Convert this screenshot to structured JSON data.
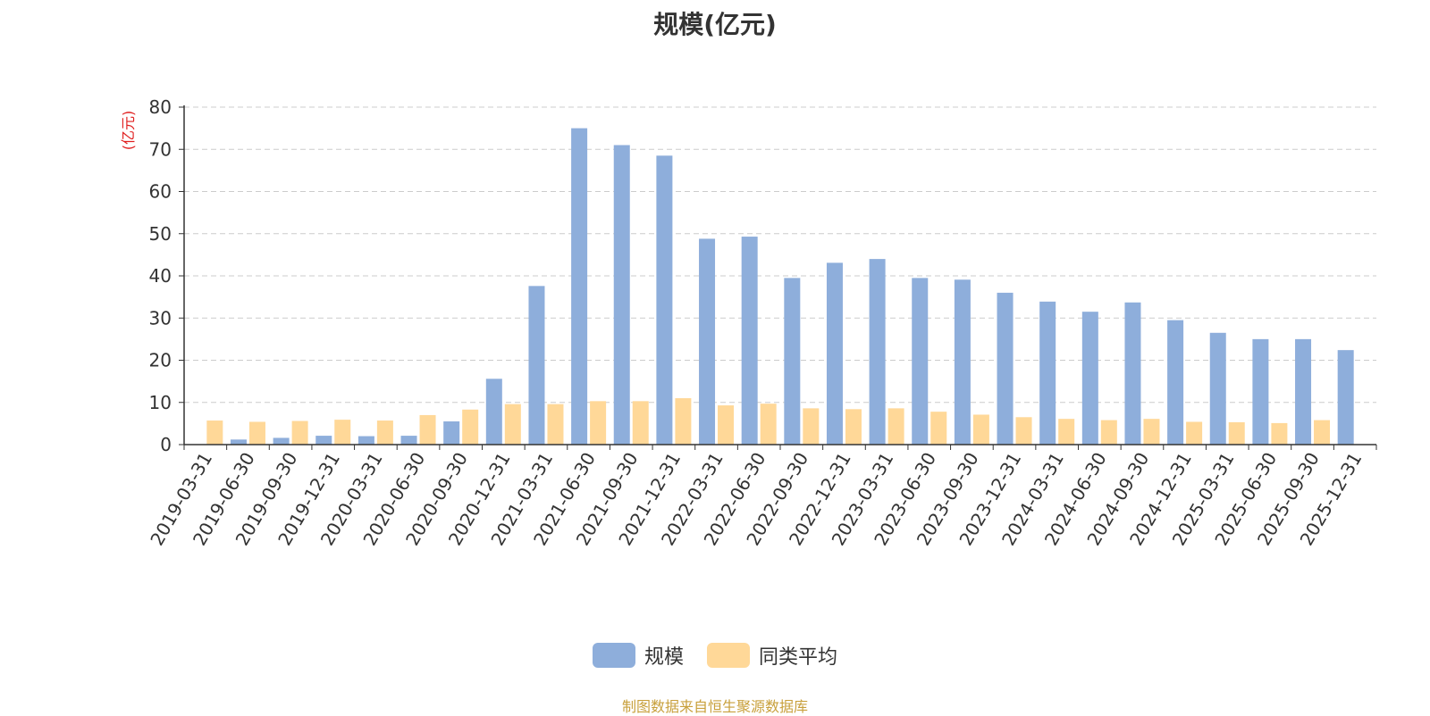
{
  "chart_data": {
    "type": "bar",
    "title": "规模(亿元)",
    "ylabel": "(亿元)",
    "xlabel": "",
    "ylim": [
      0,
      80
    ],
    "yticks": [
      0,
      10,
      20,
      30,
      40,
      50,
      60,
      70,
      80
    ],
    "grid": true,
    "legend_position": "bottom",
    "categories": [
      "2019-03-31",
      "2019-06-30",
      "2019-09-30",
      "2019-12-31",
      "2020-03-31",
      "2020-06-30",
      "2020-09-30",
      "2020-12-31",
      "2021-03-31",
      "2021-06-30",
      "2021-09-30",
      "2021-12-31",
      "2022-03-31",
      "2022-06-30",
      "2022-09-30",
      "2022-12-31",
      "2023-03-31",
      "2023-06-30",
      "2023-09-30",
      "2023-12-31",
      "2024-03-31",
      "2024-06-30",
      "2024-09-30",
      "2024-12-31",
      "2025-03-31",
      "2025-06-30",
      "2025-09-30",
      "2025-12-31"
    ],
    "series": [
      {
        "name": "规模",
        "color": "#8eaedb",
        "values": [
          0,
          1.2,
          1.6,
          2.1,
          2.0,
          2.1,
          5.5,
          15.6,
          37.6,
          75.0,
          71.0,
          68.5,
          48.8,
          49.3,
          39.5,
          43.1,
          44.0,
          39.5,
          39.1,
          36.0,
          33.9,
          31.5,
          33.7,
          29.5,
          26.5,
          25.0,
          25.0,
          22.4
        ]
      },
      {
        "name": "同类平均",
        "color": "#ffd898",
        "values": [
          5.7,
          5.4,
          5.6,
          5.9,
          5.7,
          7.0,
          8.3,
          9.6,
          9.6,
          10.3,
          10.3,
          11.0,
          9.3,
          9.7,
          8.6,
          8.4,
          8.6,
          7.8,
          7.1,
          6.5,
          6.1,
          5.8,
          6.1,
          5.4,
          5.3,
          5.1,
          5.8,
          null
        ]
      }
    ]
  },
  "source_note": "制图数据来自恒生聚源数据库"
}
